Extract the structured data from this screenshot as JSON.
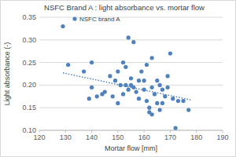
{
  "chart_data": {
    "type": "scatter",
    "title": "NSFC Brand A : light absorbance vs.  mortar flow",
    "x_label": "Mortar flow [mm]",
    "y_label": "Light absorbance (-)",
    "xlim": [
      120,
      190
    ],
    "xticks": [
      120,
      130,
      140,
      150,
      160,
      170,
      180,
      190
    ],
    "ylim": [
      0.1,
      0.35
    ],
    "yticks": [
      {
        "value": 0.1,
        "label": "0.10"
      },
      {
        "value": 0.15,
        "label": "0.15"
      },
      {
        "value": 0.2,
        "label": "0.20"
      },
      {
        "value": 0.25,
        "label": "0.25"
      },
      {
        "value": 0.3,
        "label": "0.30"
      },
      {
        "value": 0.35,
        "label": "0.35"
      }
    ],
    "grid": true,
    "legend": "top-left",
    "series": [
      {
        "name": "NSFC brand A",
        "type": "scatter",
        "marker": "circle",
        "color": "#4f81bd",
        "x": [
          129,
          131,
          137,
          139,
          140,
          140,
          142,
          144,
          145,
          147,
          148,
          149,
          150,
          150,
          151,
          152,
          152,
          153,
          153,
          154,
          154,
          155,
          155,
          156,
          156,
          157,
          158,
          158,
          159,
          160,
          160,
          161,
          161,
          162,
          162,
          163,
          163,
          164,
          165,
          165,
          166,
          167,
          168,
          169,
          169,
          170,
          171,
          172,
          173,
          175,
          177,
          166,
          163,
          167
        ],
        "values": [
          0.33,
          0.245,
          0.23,
          0.17,
          0.25,
          0.195,
          0.175,
          0.18,
          0.185,
          0.22,
          0.175,
          0.21,
          0.23,
          0.16,
          0.2,
          0.25,
          0.18,
          0.24,
          0.2,
          0.305,
          0.19,
          0.215,
          0.2,
          0.295,
          0.195,
          0.185,
          0.21,
          0.17,
          0.23,
          0.21,
          0.19,
          0.245,
          0.165,
          0.15,
          0.14,
          0.135,
          0.195,
          0.18,
          0.21,
          0.16,
          0.2,
          0.19,
          0.175,
          0.195,
          0.22,
          0.27,
          0.17,
          0.105,
          0.165,
          0.165,
          0.145,
          0.145,
          0.26,
          0.16
        ]
      },
      {
        "type": "line",
        "line_style": "dotted",
        "color": "#4f81bd",
        "x": [
          129,
          178
        ],
        "values": [
          0.227,
          0.167
        ]
      }
    ]
  }
}
